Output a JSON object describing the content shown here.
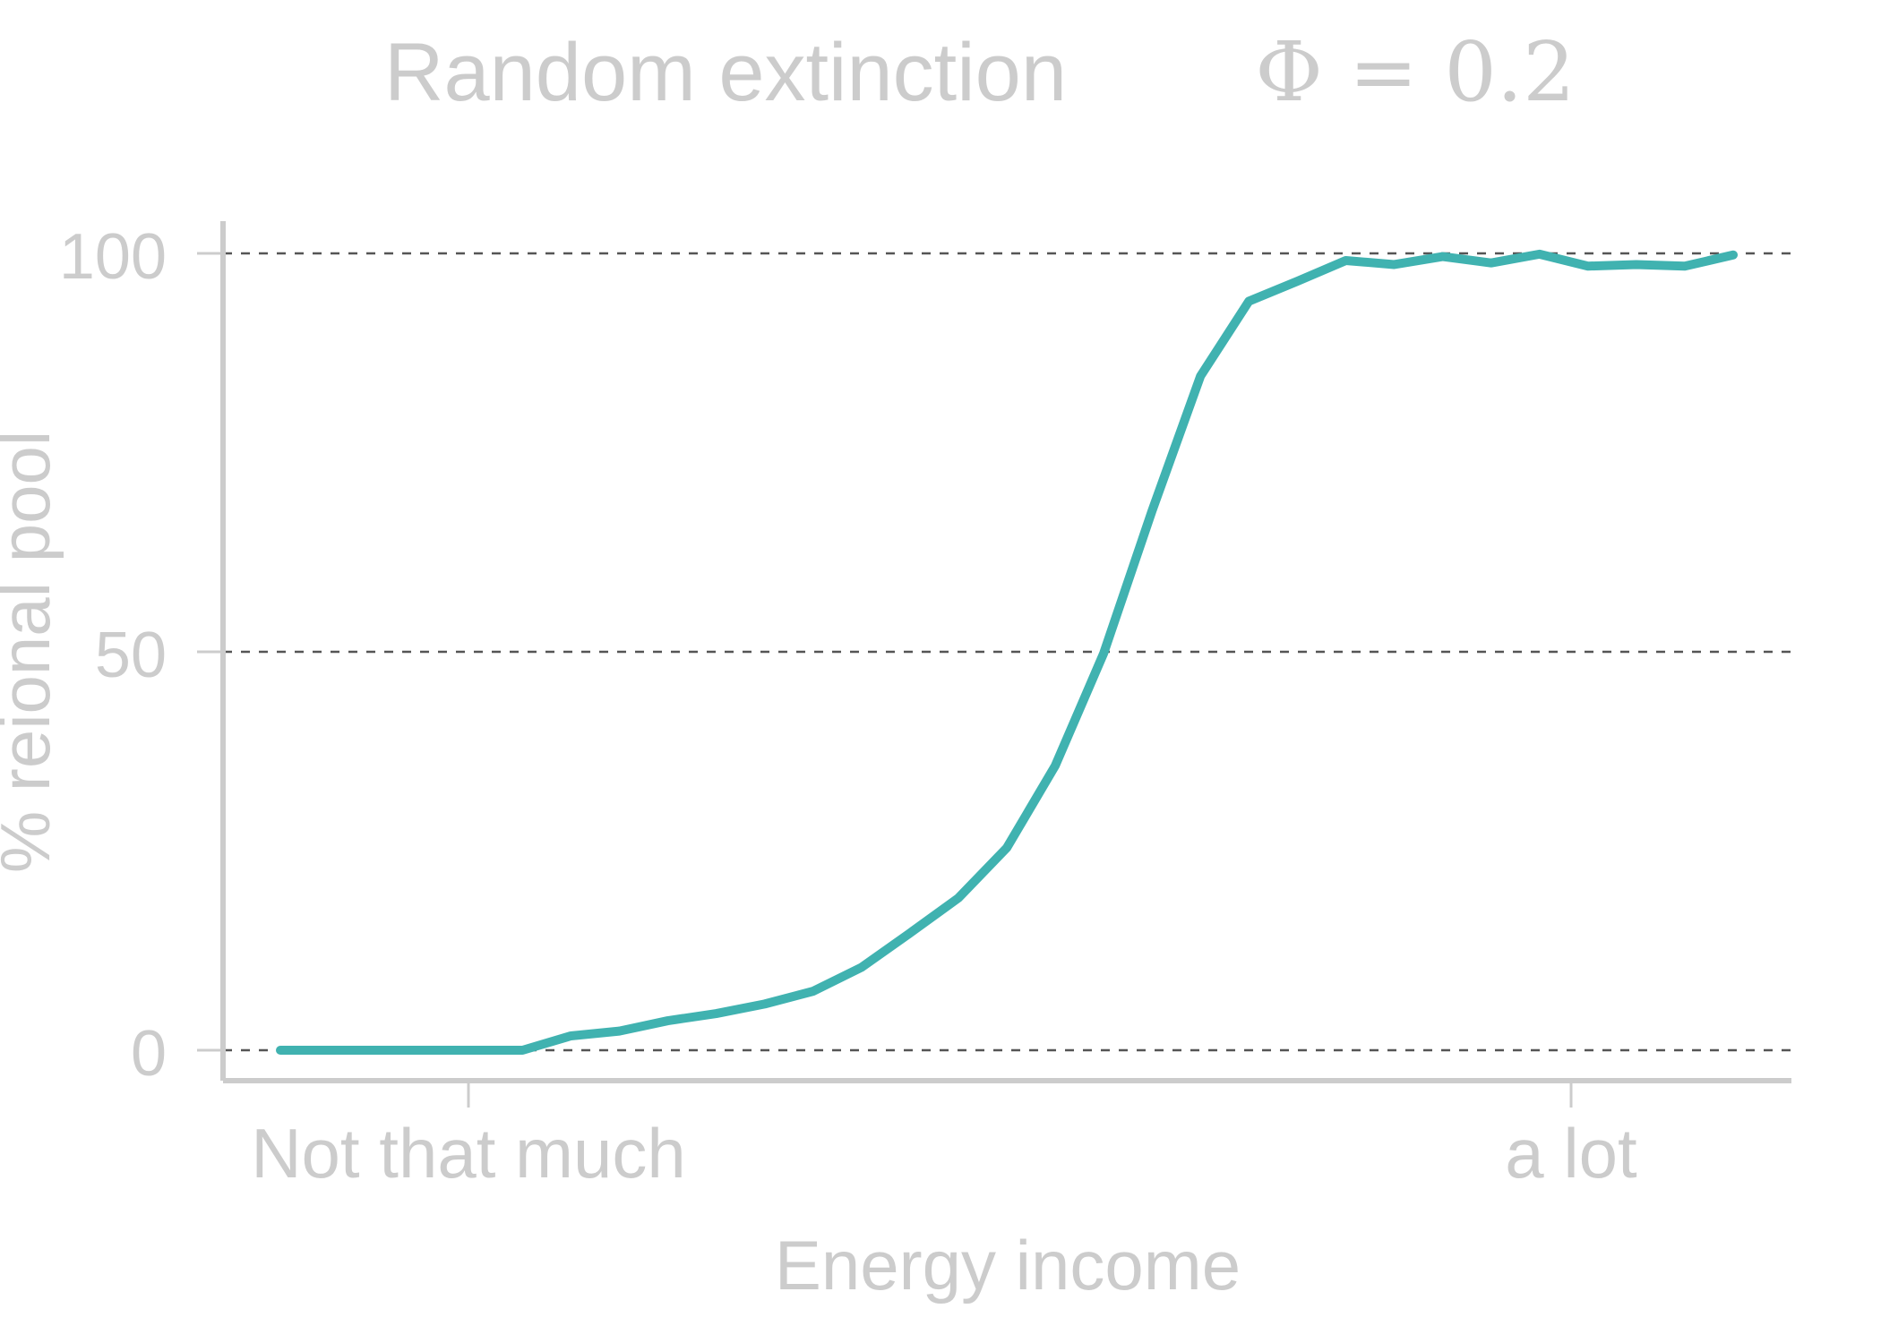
{
  "chart_data": {
    "type": "line",
    "title": "Random extinction",
    "subtitle": "Φ = 0.2",
    "xlabel": "Energy income",
    "ylabel": "% reional pool",
    "x_tick_labels": [
      "Not that much",
      "a lot"
    ],
    "y_ticks": [
      0,
      50,
      100
    ],
    "ylim": [
      -4,
      104
    ],
    "grid": "dashed horizontal at y ticks",
    "legend": "none",
    "series": [
      {
        "values": [
          0,
          0,
          0,
          0,
          0,
          0,
          1.8,
          2.4,
          3.7,
          4.6,
          5.8,
          7.4,
          10.4,
          14.7,
          19.1,
          25.4,
          35.7,
          49.8,
          67.7,
          84.6,
          94.0,
          96.5,
          99.1,
          98.6,
          99.6,
          98.8,
          99.9,
          98.4,
          98.6,
          98.4,
          99.8
        ]
      }
    ],
    "colors": {
      "line": "#40b2b0",
      "text": "#cccccc",
      "axis": "#cccccc",
      "grid": "#555555"
    }
  }
}
